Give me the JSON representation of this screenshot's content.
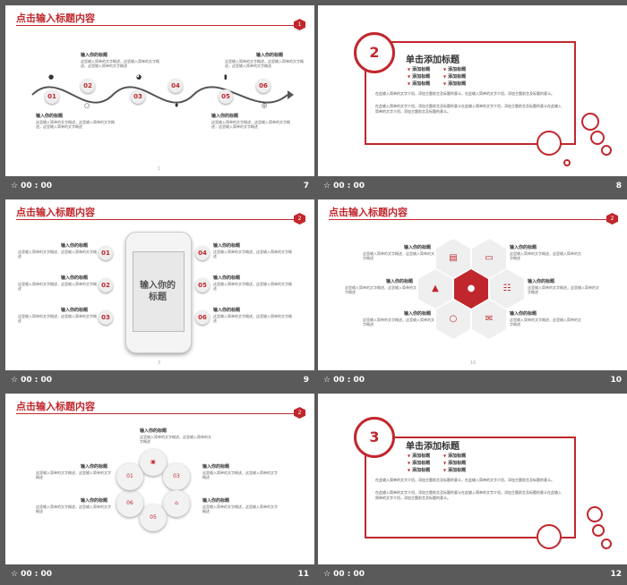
{
  "colors": {
    "accent": "#c0272d",
    "background": "#5a5a5a"
  },
  "slides": [
    {
      "number": "7",
      "time": "00 : 00",
      "title": "点击输入标题内容",
      "badge": "1",
      "page": "1",
      "labels": [
        "输入你的标题",
        "输入你的标题",
        "输入你的标题",
        "输入你的标题"
      ],
      "text": "这里输入简单的文字概述，这里输入简单的文字概述，这里输入简单的文字概述",
      "steps": [
        "01",
        "02",
        "03",
        "04",
        "05",
        "06"
      ]
    },
    {
      "number": "8",
      "time": "00 : 00",
      "circle": "2",
      "heading": "单击添加标题",
      "bullets": [
        "添加标题",
        "添加标题",
        "添加标题",
        "添加标题",
        "添加标题",
        "添加标题"
      ],
      "para1": "在此输入简单的文字介绍，添加主题前言及标题的意义，在此输入简单的文字介绍，添加主题前言及标题的意义。",
      "para2": "在此输入简单的文字介绍，添加主题前言及标题的意义在此输入简单的文字介绍，添加主题前言及标题的意义在此输入简单的文字介绍，添加主题前言及标题的意义。"
    },
    {
      "number": "9",
      "time": "00 : 00",
      "title": "点击输入标题内容",
      "badge": "2",
      "page": "3",
      "phone_text": "输入你的标题",
      "label": "输入你的标题",
      "text": "这里输入简单的文字概述，这里输入简单的文字概述",
      "steps": [
        "01",
        "02",
        "03",
        "04",
        "05",
        "06"
      ]
    },
    {
      "number": "10",
      "time": "00 : 00",
      "title": "点击输入标题内容",
      "badge": "2",
      "page": "10",
      "label": "输入你的标题",
      "text": "这里输入简单的文字概述，这里输入简单的文字概述"
    },
    {
      "number": "11",
      "time": "00 : 00",
      "title": "点击输入标题内容",
      "badge": "2",
      "label": "输入你的标题",
      "text": "这里输入简单的文字概述，这里输入简单的文字概述",
      "steps": [
        "01",
        "02",
        "03",
        "04",
        "05",
        "06"
      ]
    },
    {
      "number": "12",
      "time": "00 : 00",
      "circle": "3",
      "heading": "单击添加标题",
      "bullets": [
        "添加标题",
        "添加标题",
        "添加标题",
        "添加标题",
        "添加标题",
        "添加标题"
      ],
      "para1": "在此输入简单的文字介绍，添加主题前言及标题的意义，在此输入简单的文字介绍，添加主题前言及标题的意义。",
      "para2": "在此输入简单的文字介绍，添加主题前言及标题的意义在此输入简单的文字介绍，添加主题前言及标题的意义在此输入简单的文字介绍，添加主题前言及标题的意义。"
    }
  ]
}
